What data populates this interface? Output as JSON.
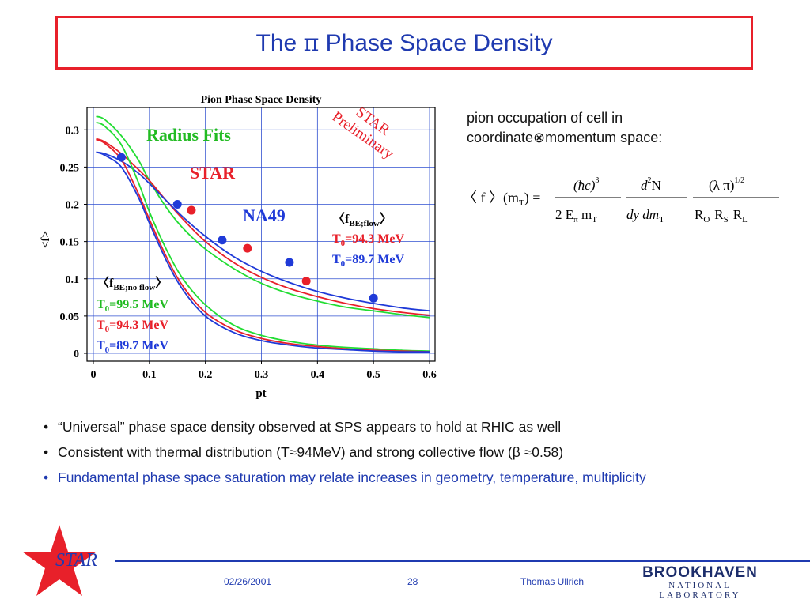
{
  "slide": {
    "title_prefix": "The ",
    "title_pi": "π",
    "title_suffix": " Phase Space Density",
    "note_line1": "pion occupation of cell in",
    "note_line2": "coordinate⊗momentum space:",
    "bullets": [
      {
        "text": "“Universal” phase space density observed at SPS appears to hold at RHIC as well",
        "color": "#111111"
      },
      {
        "text": "Consistent with thermal distribution (T≈94MeV) and strong collective flow (β ≈0.58)",
        "color": "#111111"
      },
      {
        "text": "Fundamental phase space saturation may relate increases in geometry, temperature, multiplicity",
        "color": "#1f3ab0"
      }
    ],
    "bullet_char": "•"
  },
  "formula": {
    "lhs": "〈 f 〉(m",
    "lhs_sub": "T",
    "lhs_end": ") =",
    "f1_num": "(ħc)",
    "f1_num_exp": "3",
    "f1_den": "2 E",
    "f1_den_sub1": "π",
    "f1_den_m": " m",
    "f1_den_sub2": "T",
    "f2_num": "d",
    "f2_num_exp": "2",
    "f2_num_n": "N",
    "f2_den": "dy dm",
    "f2_den_sub": "T",
    "f3_num": "(λ π)",
    "f3_num_exp": "1/2",
    "f3_den_r": "R",
    "f3_sub_o": "O",
    "f3_sub_s": "S",
    "f3_sub_l": "L"
  },
  "footer": {
    "logo_text": "STAR",
    "date": "02/26/2001",
    "page": "28",
    "author": "Thomas Ullrich",
    "lab_name": "BROOKHAVEN",
    "lab_sub": "NATIONAL LABORATORY"
  },
  "colors": {
    "title_blue": "#1f3ab0",
    "star_red": "#e8202a",
    "green": "#22dd33",
    "red": "#e8202a",
    "blue": "#1f3ad8"
  },
  "chart_data": {
    "type": "line",
    "title": "Pion Phase Space Density",
    "xlabel": "pt",
    "ylabel": "<f>",
    "xlim": [
      0,
      0.6
    ],
    "ylim": [
      0,
      0.33
    ],
    "xticks": [
      "0",
      "0.1",
      "0.2",
      "0.3",
      "0.4",
      "0.5",
      "0.6"
    ],
    "yticks": [
      "0",
      "0.05",
      "0.1",
      "0.15",
      "0.2",
      "0.25",
      "0.3"
    ],
    "grid": true,
    "series": [
      {
        "name": "Radius Fits",
        "color": "#22dd33",
        "kind": "line",
        "x": [
          0.005,
          0.02,
          0.05,
          0.08,
          0.1,
          0.13,
          0.16,
          0.2,
          0.25,
          0.3,
          0.35,
          0.4,
          0.45,
          0.5,
          0.55,
          0.6
        ],
        "y": [
          0.318,
          0.314,
          0.292,
          0.26,
          0.232,
          0.196,
          0.168,
          0.14,
          0.114,
          0.094,
          0.08,
          0.07,
          0.062,
          0.057,
          0.052,
          0.048
        ]
      },
      {
        "name": "",
        "color": "#e8202a",
        "kind": "line",
        "x": [
          0.005,
          0.02,
          0.05,
          0.08,
          0.1,
          0.13,
          0.16,
          0.2,
          0.25,
          0.3,
          0.35,
          0.4,
          0.45,
          0.5,
          0.55,
          0.6
        ],
        "y": [
          0.288,
          0.284,
          0.268,
          0.247,
          0.232,
          0.205,
          0.18,
          0.15,
          0.122,
          0.102,
          0.087,
          0.076,
          0.067,
          0.06,
          0.055,
          0.051
        ]
      },
      {
        "name": "",
        "color": "#1f3ad8",
        "kind": "line",
        "x": [
          0.005,
          0.02,
          0.05,
          0.08,
          0.1,
          0.13,
          0.16,
          0.2,
          0.25,
          0.3,
          0.35,
          0.4,
          0.45,
          0.5,
          0.55,
          0.6
        ],
        "y": [
          0.27,
          0.268,
          0.258,
          0.242,
          0.228,
          0.205,
          0.183,
          0.157,
          0.13,
          0.11,
          0.095,
          0.083,
          0.074,
          0.067,
          0.061,
          0.057
        ]
      },
      {
        "name": "",
        "color": "#22dd33",
        "kind": "line",
        "x": [
          0.005,
          0.02,
          0.05,
          0.08,
          0.1,
          0.13,
          0.16,
          0.2,
          0.25,
          0.3,
          0.35,
          0.4,
          0.45,
          0.5,
          0.55,
          0.6
        ],
        "y": [
          0.31,
          0.305,
          0.28,
          0.23,
          0.19,
          0.14,
          0.1,
          0.065,
          0.038,
          0.024,
          0.016,
          0.011,
          0.008,
          0.006,
          0.004,
          0.003
        ]
      },
      {
        "name": "",
        "color": "#e8202a",
        "kind": "line",
        "x": [
          0.005,
          0.02,
          0.05,
          0.08,
          0.1,
          0.13,
          0.16,
          0.2,
          0.25,
          0.3,
          0.35,
          0.4,
          0.45,
          0.5,
          0.55,
          0.6
        ],
        "y": [
          0.287,
          0.282,
          0.26,
          0.215,
          0.18,
          0.13,
          0.09,
          0.055,
          0.032,
          0.02,
          0.013,
          0.009,
          0.006,
          0.004,
          0.003,
          0.002
        ]
      },
      {
        "name": "",
        "color": "#1f3ad8",
        "kind": "line",
        "x": [
          0.005,
          0.02,
          0.05,
          0.08,
          0.1,
          0.13,
          0.16,
          0.2,
          0.25,
          0.3,
          0.35,
          0.4,
          0.45,
          0.5,
          0.55,
          0.6
        ],
        "y": [
          0.27,
          0.266,
          0.25,
          0.21,
          0.175,
          0.125,
          0.085,
          0.05,
          0.028,
          0.017,
          0.011,
          0.007,
          0.005,
          0.003,
          0.002,
          0.002
        ]
      },
      {
        "name": "STAR",
        "color": "#e8202a",
        "kind": "points",
        "x": [
          0.175,
          0.275,
          0.38
        ],
        "y": [
          0.192,
          0.141,
          0.097
        ]
      },
      {
        "name": "NA49",
        "color": "#1f3ad8",
        "kind": "points",
        "x": [
          0.05,
          0.15,
          0.23,
          0.35,
          0.5
        ],
        "y": [
          0.263,
          0.2,
          0.152,
          0.122,
          0.074
        ]
      }
    ],
    "annotations": {
      "radius_fits": "Radius Fits",
      "star": "STAR",
      "na49": "NA49",
      "prelim_1": "STAR",
      "prelim_2": "Preliminary",
      "flow_head": "〈f",
      "flow_sub": "BE;flow",
      "flow_close": "〉",
      "flow_t1_pre": "T",
      "flow_t1_sub": "0",
      "flow_t1_val": "=94.3 MeV",
      "flow_t2_pre": "T",
      "flow_t2_sub": "0",
      "flow_t2_val": "=89.7 MeV",
      "noflow_head": "〈f",
      "noflow_sub": "BE;no flow",
      "noflow_close": "〉",
      "noflow_t1_pre": "T",
      "noflow_t1_sub": "0",
      "noflow_t1_val": "=99.5 MeV",
      "noflow_t2_pre": "T",
      "noflow_t2_sub": "0",
      "noflow_t2_val": "=94.3 MeV",
      "noflow_t3_pre": "T",
      "noflow_t3_sub": "0",
      "noflow_t3_val": "=89.7 MeV"
    }
  }
}
